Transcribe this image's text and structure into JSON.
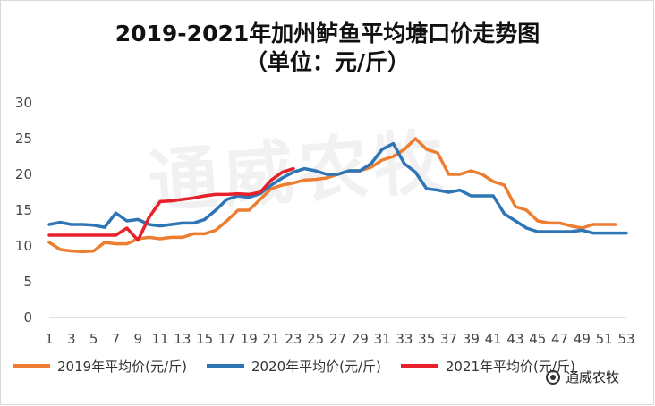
{
  "title_lines": [
    "2019-2021年加州鲈鱼平均塘口价走势图",
    "（单位：元/斤）"
  ],
  "watermark": "通威农牧",
  "brand_text": "通威农牧",
  "chart_data": {
    "type": "line",
    "title": "2019-2021年加州鲈鱼平均塘口价走势图 （单位：元/斤）",
    "xlabel": "",
    "ylabel": "",
    "ylim": [
      0,
      30
    ],
    "yticks": [
      0,
      5,
      10,
      15,
      20,
      25,
      30
    ],
    "x": [
      1,
      2,
      3,
      4,
      5,
      6,
      7,
      8,
      9,
      10,
      11,
      12,
      13,
      14,
      15,
      16,
      17,
      18,
      19,
      20,
      21,
      22,
      23,
      24,
      25,
      26,
      27,
      28,
      29,
      30,
      31,
      32,
      33,
      34,
      35,
      36,
      37,
      38,
      39,
      40,
      41,
      42,
      43,
      44,
      45,
      46,
      47,
      48,
      49,
      50,
      51,
      52,
      53
    ],
    "xtick_labels": [
      "1",
      "3",
      "5",
      "7",
      "9",
      "11",
      "13",
      "15",
      "17",
      "19",
      "21",
      "23",
      "25",
      "27",
      "29",
      "31",
      "33",
      "35",
      "37",
      "39",
      "41",
      "43",
      "45",
      "47",
      "49",
      "51",
      "53"
    ],
    "grid": false,
    "legend_position": "bottom",
    "series": [
      {
        "name": "2019年平均价(元/斤)",
        "color": "#ED7D31",
        "values": [
          10.5,
          9.5,
          9.3,
          9.2,
          9.3,
          10.5,
          10.3,
          10.3,
          11.0,
          11.2,
          11.0,
          11.2,
          11.2,
          11.7,
          11.7,
          12.2,
          13.5,
          15.0,
          15.0,
          16.5,
          18.0,
          18.5,
          18.8,
          19.2,
          19.3,
          19.5,
          20.0,
          20.5,
          20.5,
          21.0,
          22.0,
          22.5,
          23.5,
          25.0,
          23.5,
          23.0,
          20.0,
          20.0,
          20.5,
          20.0,
          19.0,
          18.5,
          15.5,
          15.0,
          13.5,
          13.2,
          13.2,
          12.8,
          12.5,
          13.0,
          13.0,
          13.0,
          null
        ]
      },
      {
        "name": "2020年平均价(元/斤)",
        "color": "#2E75B6",
        "values": [
          13.0,
          13.3,
          13.0,
          13.0,
          12.9,
          12.6,
          14.6,
          13.5,
          13.7,
          13.0,
          12.8,
          13.0,
          13.2,
          13.2,
          13.7,
          15.0,
          16.5,
          17.0,
          16.8,
          17.3,
          18.5,
          19.5,
          20.3,
          20.8,
          20.5,
          20.0,
          20.0,
          20.5,
          20.5,
          21.5,
          23.5,
          24.3,
          21.5,
          20.3,
          18.0,
          17.8,
          17.5,
          17.8,
          17.0,
          17.0,
          17.0,
          14.5,
          13.5,
          12.5,
          12.0,
          12.0,
          12.0,
          12.0,
          12.2,
          11.8,
          11.8,
          11.8,
          11.8
        ]
      },
      {
        "name": "2021年平均价(元/斤)",
        "color": "#E8202A",
        "values": [
          11.5,
          11.5,
          11.5,
          11.5,
          11.5,
          11.5,
          11.5,
          12.5,
          10.8,
          14.0,
          16.2,
          16.3,
          16.5,
          16.7,
          17.0,
          17.2,
          17.2,
          17.3,
          17.2,
          17.5,
          19.2,
          20.3,
          20.8,
          null,
          null,
          null,
          null,
          null,
          null,
          null,
          null,
          null,
          null,
          null,
          null,
          null,
          null,
          null,
          null,
          null,
          null,
          null,
          null,
          null,
          null,
          null,
          null,
          null,
          null,
          null,
          null,
          null,
          null
        ]
      }
    ]
  }
}
